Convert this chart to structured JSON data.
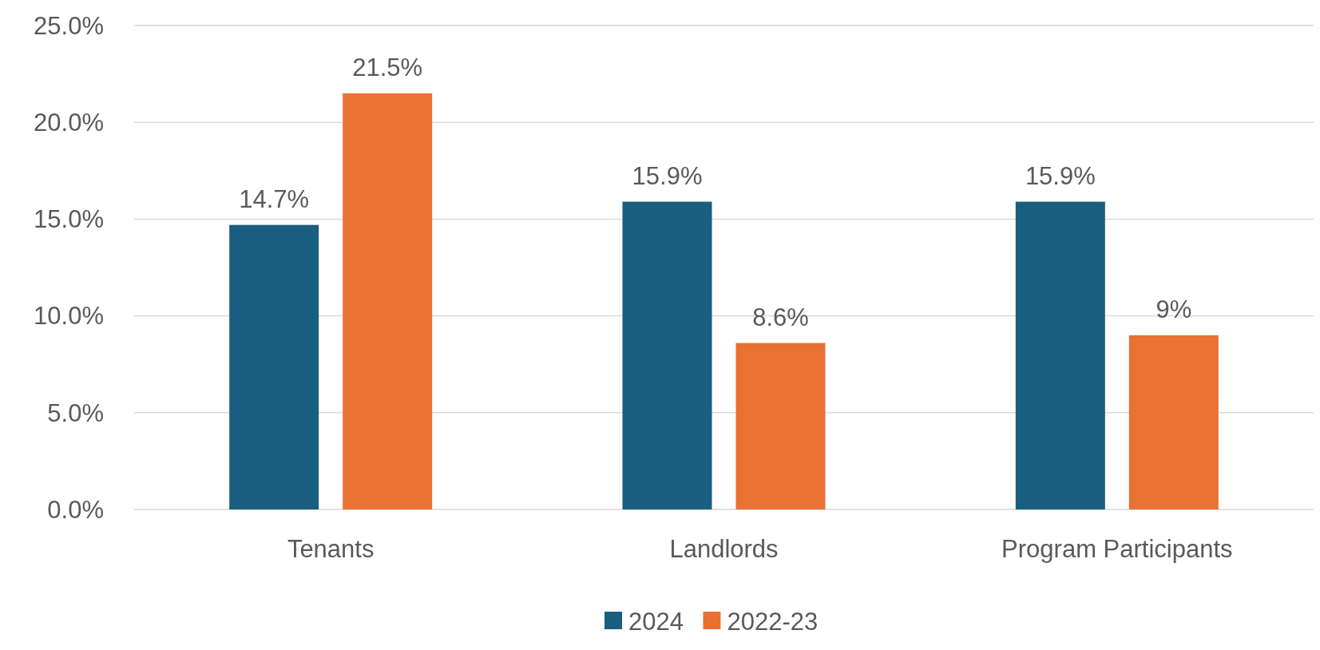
{
  "chart_data": {
    "type": "bar",
    "categories": [
      "Tenants",
      "Landlords",
      "Program Participants"
    ],
    "series": [
      {
        "name": "2024",
        "color": "#1a5e80",
        "values": [
          14.7,
          15.9,
          15.9
        ],
        "value_labels": [
          "14.7%",
          "15.9%",
          "15.9%"
        ]
      },
      {
        "name": "2022-23",
        "color": "#e97132",
        "values": [
          21.5,
          8.6,
          9
        ],
        "value_labels": [
          "21.5%",
          "8.6%",
          "9%"
        ]
      }
    ],
    "ylim": [
      0,
      25
    ],
    "yticks": [
      {
        "value": 0,
        "label": "0.0%"
      },
      {
        "value": 5,
        "label": "5.0%"
      },
      {
        "value": 10,
        "label": "10.0%"
      },
      {
        "value": 15,
        "label": "15.0%"
      },
      {
        "value": 20,
        "label": "20.0%"
      },
      {
        "value": 25,
        "label": "25.0%"
      }
    ],
    "grid": "y",
    "legend": "bottom"
  }
}
